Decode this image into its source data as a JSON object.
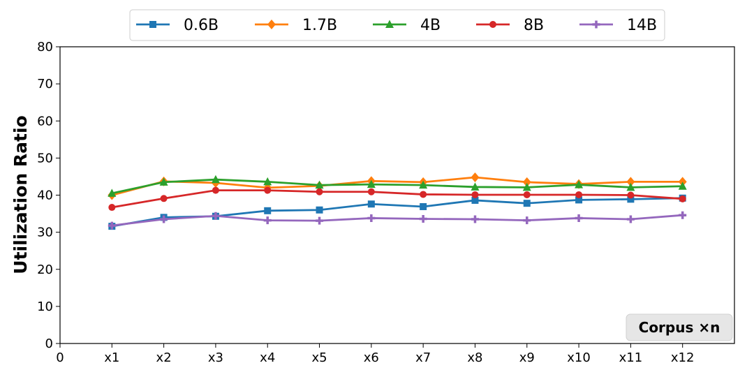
{
  "chart_data": {
    "type": "line",
    "title": "",
    "xlabel": "",
    "ylabel": "Utilization Ratio",
    "annotation": "Corpus ×n",
    "x_ticks": [
      "0",
      "x1",
      "x2",
      "x3",
      "x4",
      "x5",
      "x6",
      "x7",
      "x8",
      "x9",
      "x10",
      "x11",
      "x12"
    ],
    "x": [
      1,
      2,
      3,
      4,
      5,
      6,
      7,
      8,
      9,
      10,
      11,
      12
    ],
    "xlim": [
      0,
      13
    ],
    "ylim": [
      0,
      80
    ],
    "y_ticks": [
      0,
      10,
      20,
      30,
      40,
      50,
      60,
      70,
      80
    ],
    "grid": false,
    "legend_position": "top-center",
    "series": [
      {
        "name": "0.6B",
        "color": "#1f77b4",
        "marker": "square",
        "values": [
          31.6,
          34.0,
          34.3,
          35.8,
          36.0,
          37.6,
          36.9,
          38.6,
          37.8,
          38.7,
          38.9,
          39.2
        ]
      },
      {
        "name": "1.7B",
        "color": "#ff7f0e",
        "marker": "diamond",
        "values": [
          40.0,
          43.7,
          43.3,
          42.0,
          42.5,
          43.8,
          43.5,
          44.8,
          43.5,
          43.0,
          43.6,
          43.6
        ]
      },
      {
        "name": "4B",
        "color": "#2ca02c",
        "marker": "triangle",
        "values": [
          40.5,
          43.5,
          44.2,
          43.6,
          42.7,
          42.9,
          42.7,
          42.2,
          42.1,
          42.8,
          42.1,
          42.4
        ]
      },
      {
        "name": "8B",
        "color": "#d62728",
        "marker": "circle",
        "values": [
          36.7,
          39.1,
          41.3,
          41.3,
          40.9,
          40.9,
          40.2,
          40.1,
          40.1,
          40.1,
          40.0,
          39.0
        ]
      },
      {
        "name": "14B",
        "color": "#9467bd",
        "marker": "plus",
        "values": [
          31.8,
          33.5,
          34.4,
          33.2,
          33.1,
          33.8,
          33.6,
          33.5,
          33.2,
          33.8,
          33.5,
          34.6
        ]
      }
    ]
  }
}
